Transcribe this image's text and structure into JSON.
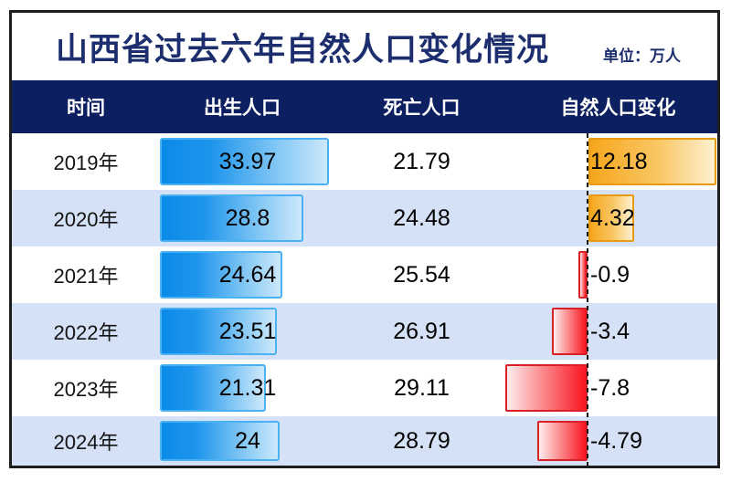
{
  "title": "山西省过去六年自然人口变化情况",
  "unit_label": "单位：万人",
  "colors": {
    "frame_border": "#1e1e1e",
    "title_text": "#1c2e6e",
    "header_bg": "#0c2061",
    "header_text": "#ffffff",
    "row_alt_bg": "#d4e1f7",
    "row_bg": "#ffffff",
    "birth_bar_start": "#0b8ae9",
    "birth_bar_end": "#cde8fb",
    "birth_bar_border": "#4ab1f2",
    "positive_bar_start": "#f6a61d",
    "positive_bar_end": "#fdf0d0",
    "positive_bar_border": "#ea9a10",
    "negative_bar_start": "#fdecec",
    "negative_bar_end": "#f91420",
    "negative_bar_border": "#da2027",
    "zero_line": "#141414"
  },
  "chart_data": {
    "type": "table",
    "subtype": "table-with-data-bars",
    "title": "山西省过去六年自然人口变化情况",
    "unit": "万人",
    "columns": [
      "时间",
      "出生人口",
      "死亡人口",
      "自然人口变化"
    ],
    "categories": [
      "2019年",
      "2020年",
      "2021年",
      "2022年",
      "2023年",
      "2024年"
    ],
    "series": [
      {
        "name": "出生人口",
        "values": [
          33.97,
          28.8,
          24.64,
          23.51,
          21.31,
          24
        ]
      },
      {
        "name": "死亡人口",
        "values": [
          21.79,
          24.48,
          25.54,
          26.91,
          29.11,
          28.79
        ]
      },
      {
        "name": "自然人口变化",
        "values": [
          12.18,
          4.32,
          -0.9,
          -3.4,
          -7.8,
          -4.79
        ]
      }
    ],
    "layout_hints": {
      "birth_column_rendered_as": "horizontal blue gradient bars with value inside",
      "change_column_rendered_as": "diverging bars from dashed zero axis: orange positive (right), red negative (left), label right of axis",
      "row_striping": "white / light blue alternating"
    }
  }
}
